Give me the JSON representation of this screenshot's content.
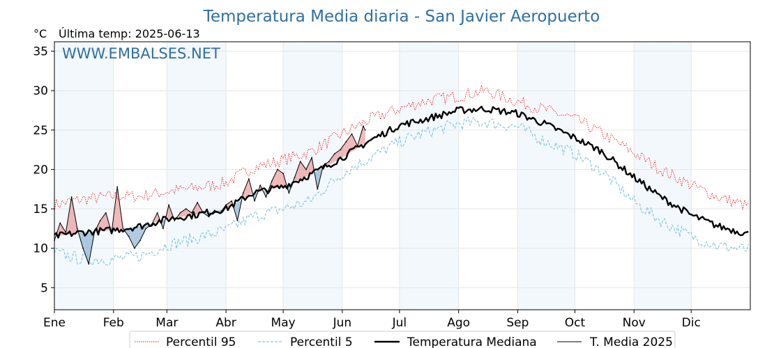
{
  "chart_data": {
    "type": "line",
    "title": "Temperatura Media diaria - San Javier Aeropuerto",
    "unit_label": "°C",
    "last_temp_label": "Última temp: 2025-06-13",
    "watermark": "WWW.EMBALSES.NET",
    "months": [
      "Ene",
      "Feb",
      "Mar",
      "Abr",
      "May",
      "Jun",
      "Jul",
      "Ago",
      "Sep",
      "Oct",
      "Nov",
      "Dic"
    ],
    "yticks": [
      5,
      10,
      15,
      20,
      25,
      30,
      35
    ],
    "ylim": [
      2.2,
      36.2
    ],
    "xlim_days": [
      1,
      366
    ],
    "grid": true,
    "legend_position": "bottom",
    "series": [
      {
        "name": "Percentil 95",
        "color": "#ff0000",
        "style": "dotted",
        "x": [
          1,
          15,
          32,
          46,
          60,
          74,
          91,
          105,
          121,
          135,
          152,
          166,
          182,
          196,
          213,
          227,
          244,
          258,
          274,
          288,
          305,
          319,
          335,
          349,
          365
        ],
        "values": [
          15.5,
          16.2,
          16.6,
          16.6,
          17.2,
          17.6,
          18.3,
          20.2,
          21.2,
          22.2,
          24.5,
          26.3,
          27.7,
          28.7,
          29.3,
          30.0,
          28.6,
          27.6,
          26.4,
          24.6,
          22.1,
          20.0,
          18.0,
          16.5,
          15.3
        ]
      },
      {
        "name": "Percentil 5",
        "color": "#7fc4dc",
        "style": "dashed",
        "x": [
          1,
          15,
          32,
          46,
          60,
          74,
          91,
          105,
          121,
          135,
          152,
          166,
          182,
          196,
          213,
          227,
          244,
          258,
          274,
          288,
          305,
          319,
          335,
          349,
          365
        ],
        "values": [
          9.5,
          8.6,
          8.6,
          9.0,
          10.4,
          11.2,
          12.3,
          14.0,
          15.0,
          16.0,
          19.5,
          21.4,
          23.5,
          24.7,
          25.8,
          26.0,
          25.4,
          23.6,
          22.0,
          19.8,
          15.9,
          13.5,
          11.5,
          10.3,
          9.8
        ]
      },
      {
        "name": "Temperatura Mediana",
        "color": "#000000",
        "style": "thick",
        "x": [
          1,
          15,
          32,
          46,
          60,
          74,
          91,
          105,
          121,
          135,
          152,
          166,
          182,
          196,
          213,
          227,
          244,
          258,
          274,
          288,
          305,
          319,
          335,
          349,
          365
        ],
        "values": [
          11.5,
          12.0,
          12.3,
          12.8,
          13.7,
          14.2,
          15.0,
          17.0,
          17.8,
          19.3,
          21.5,
          23.6,
          25.6,
          26.4,
          27.5,
          27.7,
          27.1,
          25.8,
          24.0,
          22.3,
          19.0,
          16.5,
          14.2,
          12.8,
          11.8
        ]
      },
      {
        "name": "T. Media 2025",
        "color": "#000000",
        "style": "thin",
        "x": [
          1,
          4,
          7,
          10,
          13,
          16,
          19,
          22,
          25,
          28,
          31,
          34,
          37,
          40,
          43,
          46,
          49,
          52,
          55,
          58,
          61,
          64,
          67,
          70,
          73,
          76,
          79,
          82,
          85,
          88,
          91,
          94,
          97,
          100,
          103,
          106,
          109,
          112,
          115,
          118,
          121,
          124,
          127,
          130,
          133,
          136,
          139,
          142,
          145,
          148,
          151,
          154,
          157,
          160,
          163,
          164
        ],
        "values": [
          11.0,
          13.2,
          12.0,
          16.5,
          12.5,
          10.0,
          8.0,
          12.0,
          13.5,
          14.5,
          12.0,
          17.8,
          12.5,
          11.5,
          10.0,
          11.0,
          12.5,
          13.0,
          14.5,
          12.5,
          15.5,
          13.5,
          14.5,
          15.0,
          14.5,
          15.8,
          14.5,
          14.0,
          14.8,
          14.5,
          15.5,
          16.0,
          13.5,
          17.0,
          18.8,
          16.0,
          18.0,
          16.5,
          18.5,
          20.0,
          19.5,
          17.0,
          19.0,
          21.0,
          20.0,
          21.5,
          17.5,
          20.5,
          21.0,
          22.0,
          22.5,
          23.5,
          24.5,
          23.0,
          25.5,
          25.0
        ]
      }
    ]
  },
  "legend": {
    "items": [
      "Percentil 95",
      "Percentil 5",
      "Temperatura Mediana",
      "T. Media 2025"
    ]
  }
}
